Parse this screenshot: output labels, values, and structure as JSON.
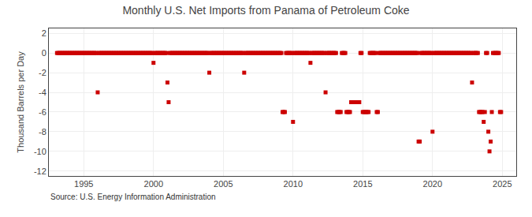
{
  "chart_data": {
    "type": "scatter",
    "title": "Monthly U.S. Net Imports from Panama of Petroleum Coke",
    "ylabel": "Thousand Barrels per Day",
    "annotations": [
      "Source: U.S. Energy Information Administration"
    ],
    "color": "#cc0000",
    "marker": "square",
    "grid": true,
    "xlim": [
      1992.5,
      2026.0
    ],
    "ylim": [
      -12.5,
      2.5
    ],
    "xticks": [
      1995,
      2000,
      2005,
      2010,
      2015,
      2020,
      2025
    ],
    "yticks": [
      2,
      0,
      -2,
      -4,
      -6,
      -8,
      -10,
      -12
    ],
    "x": [
      1993.083,
      1993.167,
      1993.25,
      1993.333,
      1993.417,
      1993.5,
      1993.583,
      1993.667,
      1993.75,
      1993.833,
      1993.917,
      1994.0,
      1994.083,
      1994.167,
      1994.25,
      1994.333,
      1994.417,
      1994.5,
      1994.583,
      1994.667,
      1994.75,
      1994.833,
      1994.917,
      1995.0,
      1995.083,
      1995.167,
      1995.25,
      1995.333,
      1995.417,
      1995.5,
      1995.583,
      1995.667,
      1995.75,
      1995.833,
      1995.917,
      1996.0,
      1996.083,
      1996.167,
      1996.25,
      1996.333,
      1996.417,
      1996.5,
      1996.583,
      1996.667,
      1996.75,
      1996.833,
      1996.917,
      1997.0,
      1997.083,
      1997.167,
      1997.25,
      1997.333,
      1997.417,
      1997.5,
      1997.583,
      1997.667,
      1997.75,
      1997.833,
      1997.917,
      1998.0,
      1998.083,
      1998.167,
      1998.25,
      1998.333,
      1998.417,
      1998.5,
      1998.583,
      1998.667,
      1998.75,
      1998.833,
      1998.917,
      1999.0,
      1999.083,
      1999.167,
      1999.25,
      1999.333,
      1999.417,
      1999.5,
      1999.583,
      1999.667,
      1999.75,
      1999.833,
      1999.917,
      2000.0,
      2000.083,
      2000.167,
      2000.25,
      2000.333,
      2000.417,
      2000.5,
      2000.583,
      2000.667,
      2000.75,
      2000.833,
      2000.917,
      2001.0,
      2001.083,
      2001.167,
      2001.25,
      2001.333,
      2001.417,
      2001.5,
      2001.583,
      2001.667,
      2001.75,
      2001.833,
      2001.917,
      2002.0,
      2002.083,
      2002.167,
      2002.25,
      2002.333,
      2002.417,
      2002.5,
      2002.583,
      2002.667,
      2002.75,
      2002.833,
      2002.917,
      2003.0,
      2003.083,
      2003.167,
      2003.25,
      2003.333,
      2003.417,
      2003.5,
      2003.583,
      2003.667,
      2003.75,
      2003.833,
      2003.917,
      2004.0,
      2004.083,
      2004.167,
      2004.25,
      2004.333,
      2004.417,
      2004.5,
      2004.583,
      2004.667,
      2004.75,
      2004.833,
      2004.917,
      2005.0,
      2005.083,
      2005.167,
      2005.25,
      2005.333,
      2005.417,
      2005.5,
      2005.583,
      2005.667,
      2005.75,
      2005.833,
      2005.917,
      2006.0,
      2006.083,
      2006.167,
      2006.25,
      2006.333,
      2006.417,
      2006.5,
      2006.583,
      2006.667,
      2006.75,
      2006.833,
      2006.917,
      2007.0,
      2007.083,
      2007.167,
      2007.25,
      2007.333,
      2007.417,
      2007.5,
      2007.583,
      2007.667,
      2007.75,
      2007.833,
      2007.917,
      2008.0,
      2008.083,
      2008.167,
      2008.25,
      2008.333,
      2008.417,
      2008.5,
      2008.583,
      2008.667,
      2008.75,
      2008.833,
      2008.917,
      2009.0,
      2009.083,
      2009.167,
      2009.25,
      2009.333,
      2009.417,
      2009.5,
      2009.583,
      2009.667,
      2009.75,
      2009.833,
      2009.917,
      2010.0,
      2010.083,
      2010.167,
      2010.25,
      2010.333,
      2010.417,
      2010.5,
      2010.583,
      2010.667,
      2010.75,
      2010.833,
      2010.917,
      2011.0,
      2011.083,
      2011.167,
      2011.25,
      2011.333,
      2011.417,
      2011.5,
      2011.583,
      2011.667,
      2011.75,
      2011.833,
      2011.917,
      2012.0,
      2012.083,
      2012.167,
      2012.25,
      2012.333,
      2012.417,
      2012.5,
      2012.583,
      2012.667,
      2012.75,
      2012.833,
      2012.917,
      2013.0,
      2013.083,
      2013.167,
      2013.25,
      2013.333,
      2013.417,
      2013.5,
      2013.583,
      2013.667,
      2013.75,
      2013.833,
      2013.917,
      2014.0,
      2014.083,
      2014.167,
      2014.25,
      2014.333,
      2014.417,
      2014.5,
      2014.583,
      2014.667,
      2014.75,
      2014.833,
      2014.917,
      2015.0,
      2015.083,
      2015.167,
      2015.25,
      2015.333,
      2015.417,
      2015.5,
      2015.583,
      2015.667,
      2015.75,
      2015.833,
      2015.917,
      2016.0,
      2016.083,
      2016.167,
      2016.25,
      2016.333,
      2016.417,
      2016.5,
      2016.583,
      2016.667,
      2016.75,
      2016.833,
      2016.917,
      2017.0,
      2017.083,
      2017.167,
      2017.25,
      2017.333,
      2017.417,
      2017.5,
      2017.583,
      2017.667,
      2017.75,
      2017.833,
      2017.917,
      2018.0,
      2018.083,
      2018.167,
      2018.25,
      2018.333,
      2018.417,
      2018.5,
      2018.583,
      2018.667,
      2018.75,
      2018.833,
      2018.917,
      2019.0,
      2019.083,
      2019.167,
      2019.25,
      2019.333,
      2019.417,
      2019.5,
      2019.583,
      2019.667,
      2019.75,
      2019.833,
      2019.917,
      2020.0,
      2020.083,
      2020.167,
      2020.25,
      2020.333,
      2020.417,
      2020.5,
      2020.583,
      2020.667,
      2020.75,
      2020.833,
      2020.917,
      2021.0,
      2021.083,
      2021.167,
      2021.25,
      2021.333,
      2021.417,
      2021.5,
      2021.583,
      2021.667,
      2021.75,
      2021.833,
      2021.917,
      2022.0,
      2022.083,
      2022.167,
      2022.25,
      2022.333,
      2022.417,
      2022.5,
      2022.583,
      2022.667,
      2022.75,
      2022.833,
      2022.917,
      2023.0,
      2023.083,
      2023.167,
      2023.25,
      2023.333,
      2023.417,
      2023.5,
      2023.583,
      2023.667,
      2023.75,
      2023.833,
      2023.917,
      2024.0,
      2024.083,
      2024.167,
      2024.25,
      2024.333,
      2024.417,
      2024.5,
      2024.583,
      2024.667,
      2024.75,
      2024.833,
      2024.917
    ],
    "values": [
      0,
      0,
      0,
      0,
      0,
      0,
      0,
      0,
      0,
      0,
      0,
      0,
      0,
      0,
      0,
      0,
      0,
      0,
      0,
      0,
      0,
      0,
      0,
      0,
      0,
      0,
      0,
      0,
      0,
      0,
      0,
      0,
      0,
      0,
      0,
      -4,
      0,
      0,
      0,
      0,
      0,
      0,
      0,
      0,
      0,
      0,
      0,
      0,
      0,
      0,
      0,
      0,
      0,
      0,
      0,
      0,
      0,
      0,
      0,
      0,
      0,
      0,
      0,
      0,
      0,
      0,
      0,
      0,
      0,
      0,
      0,
      0,
      0,
      0,
      0,
      0,
      0,
      0,
      0,
      0,
      0,
      0,
      0,
      -1,
      0,
      0,
      0,
      0,
      0,
      0,
      0,
      0,
      0,
      0,
      0,
      -3,
      -5,
      0,
      0,
      0,
      0,
      0,
      0,
      0,
      0,
      0,
      0,
      0,
      0,
      0,
      0,
      0,
      0,
      0,
      0,
      0,
      0,
      0,
      0,
      0,
      0,
      0,
      0,
      0,
      0,
      0,
      0,
      0,
      0,
      0,
      0,
      -2,
      0,
      0,
      0,
      0,
      0,
      0,
      0,
      0,
      0,
      0,
      0,
      0,
      0,
      0,
      0,
      0,
      0,
      0,
      0,
      0,
      0,
      0,
      0,
      0,
      0,
      0,
      0,
      0,
      0,
      -2,
      0,
      0,
      0,
      0,
      0,
      0,
      0,
      0,
      0,
      0,
      0,
      0,
      0,
      0,
      0,
      0,
      0,
      0,
      0,
      0,
      0,
      0,
      0,
      0,
      0,
      0,
      0,
      0,
      0,
      0,
      0,
      0,
      -6,
      -6,
      -6,
      0,
      0,
      0,
      0,
      0,
      0,
      -7,
      0,
      0,
      0,
      0,
      0,
      0,
      0,
      0,
      0,
      0,
      0,
      0,
      0,
      0,
      -1,
      0,
      0,
      0,
      0,
      0,
      0,
      0,
      0,
      0,
      0,
      0,
      0,
      -4,
      0,
      0,
      0,
      0,
      0,
      0,
      0,
      0,
      0,
      -6,
      -6,
      -6,
      -6,
      0,
      0,
      0,
      0,
      -6,
      -6,
      -6,
      -6,
      -5,
      -5,
      -5,
      -5,
      -5,
      -5,
      -5,
      -5,
      0,
      0,
      -6,
      -6,
      -6,
      -6,
      -6,
      -6,
      0,
      0,
      0,
      0,
      0,
      0,
      -6,
      -6,
      0,
      0,
      0,
      0,
      0,
      0,
      0,
      0,
      0,
      0,
      0,
      0,
      0,
      0,
      0,
      0,
      0,
      0,
      0,
      0,
      0,
      0,
      0,
      0,
      0,
      0,
      0,
      0,
      0,
      0,
      0,
      0,
      0,
      0,
      -9,
      -9,
      0,
      0,
      0,
      0,
      0,
      0,
      0,
      0,
      0,
      0,
      -8,
      0,
      0,
      0,
      0,
      0,
      0,
      0,
      0,
      0,
      0,
      0,
      0,
      0,
      0,
      0,
      0,
      0,
      0,
      0,
      0,
      0,
      0,
      0,
      0,
      0,
      0,
      0,
      0,
      0,
      0,
      0,
      0,
      0,
      -3,
      0,
      0,
      0,
      0,
      0,
      -6,
      -6,
      -6,
      -6,
      -7,
      -6,
      0,
      0,
      -8,
      -10,
      -9,
      -6,
      0,
      0,
      0,
      0,
      0,
      0,
      -6,
      -6
    ]
  }
}
